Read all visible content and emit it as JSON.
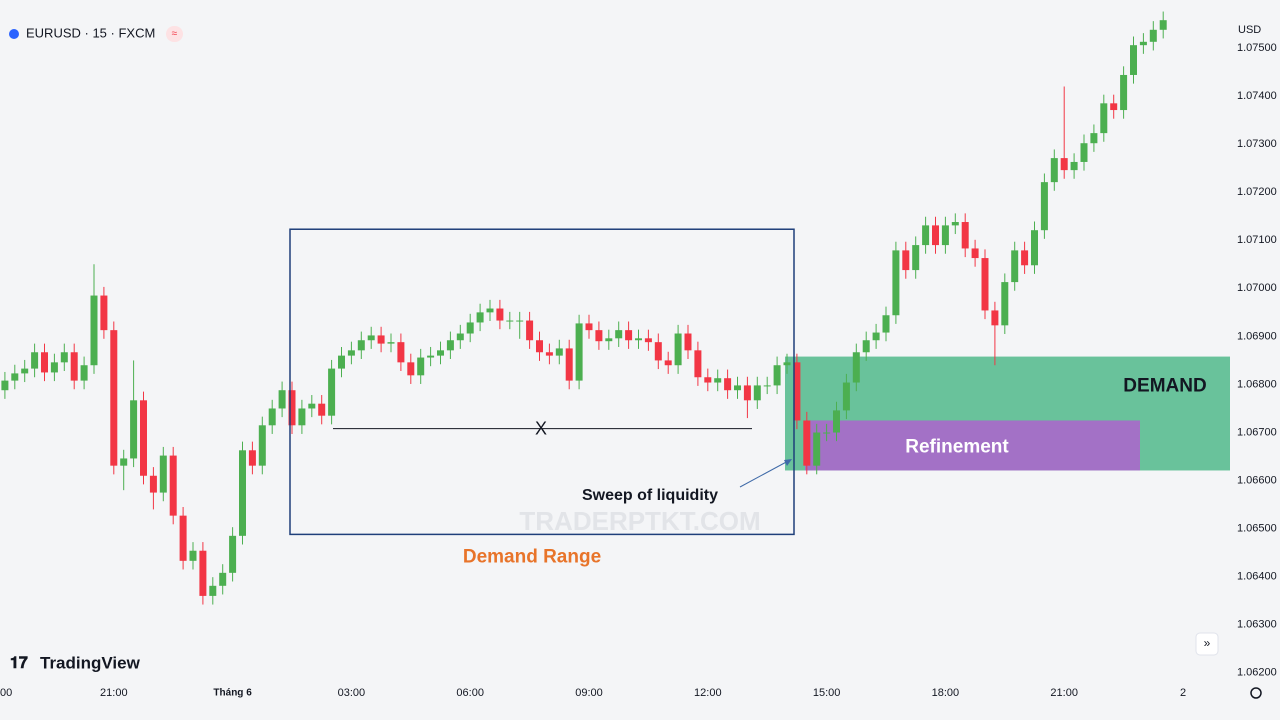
{
  "chart_data": {
    "type": "candlestick",
    "title": "EURUSD · 15 · FXCM",
    "currency": "USD",
    "brand": "TradingView",
    "watermark": "TRADERPTKT.COM",
    "up_color": "#4caf50",
    "down_color": "#f23645",
    "grid": false,
    "categories": [
      "00",
      null,
      null,
      null,
      null,
      null,
      null,
      null,
      null,
      null,
      null,
      null,
      "21:00",
      null,
      null,
      null,
      null,
      null,
      null,
      null,
      null,
      null,
      null,
      null,
      "Tháng 6",
      null,
      null,
      null,
      null,
      null,
      null,
      null,
      null,
      null,
      null,
      null,
      "03:00",
      null,
      null,
      null,
      null,
      null,
      null,
      null,
      null,
      null,
      null,
      null,
      "06:00",
      null,
      null,
      null,
      null,
      null,
      null,
      null,
      null,
      null,
      null,
      null,
      "09:00",
      null,
      null,
      null,
      null,
      null,
      null,
      null,
      null,
      null,
      null,
      null,
      "12:00",
      null,
      null,
      null,
      null,
      null,
      null,
      null,
      null,
      null,
      null,
      null,
      "15:00",
      null,
      null,
      null,
      null,
      null,
      null,
      null,
      null,
      null,
      null,
      null,
      "18:00",
      null,
      null,
      null,
      null,
      null,
      null,
      null,
      null,
      null,
      null,
      null,
      "21:00",
      null,
      null,
      null,
      null,
      null,
      null,
      null,
      null,
      null,
      null,
      null,
      "2"
    ],
    "open": [
      null,
      1.06788,
      1.06808,
      1.06823,
      1.06833,
      1.06867,
      1.06825,
      1.06846,
      1.06867,
      1.06808,
      1.0684,
      1.06985,
      1.06913,
      1.06631,
      1.06646,
      1.06767,
      1.0661,
      1.06575,
      1.06652,
      1.06527,
      1.06433,
      1.06454,
      1.0636,
      1.06381,
      1.06408,
      1.06485,
      1.06663,
      1.06631,
      1.06715,
      1.0675,
      1.06788,
      1.06715,
      1.0675,
      1.0676,
      1.06735,
      1.06833,
      1.0686,
      1.06871,
      1.06892,
      1.06902,
      1.06885,
      1.06888,
      1.06846,
      1.06819,
      1.06856,
      1.0686,
      1.06871,
      1.06892,
      1.06906,
      1.06929,
      1.0695,
      1.06958,
      1.06933,
      1.06933,
      1.06933,
      1.06892,
      1.06867,
      1.0686,
      1.06875,
      1.06808,
      1.06927,
      1.06913,
      1.0689,
      1.06896,
      1.06913,
      1.06892,
      1.06896,
      1.06888,
      1.0685,
      1.0684,
      1.06906,
      1.06871,
      1.06815,
      1.06804,
      1.06813,
      1.06788,
      1.06798,
      1.06767,
      1.06798,
      1.06798,
      1.0684,
      1.06846,
      1.06725,
      1.06631,
      1.067,
      1.067,
      1.06746,
      1.06804,
      1.06867,
      1.06892,
      1.06908,
      1.06944,
      1.07079,
      1.07038,
      1.0709,
      1.07131,
      1.0709,
      1.07131,
      1.07138,
      1.07083,
      1.07063,
      1.06954,
      1.06923,
      1.07013,
      1.07079,
      1.07048,
      1.07121,
      1.07221,
      1.07271,
      1.07246,
      1.07263,
      1.07302,
      1.07323,
      1.07385,
      1.07371,
      1.07444,
      1.07506,
      1.07513,
      1.07538,
      null,
      null
    ],
    "high": [
      null,
      1.06826,
      1.06841,
      1.06851,
      1.06885,
      1.06885,
      1.06864,
      1.06885,
      1.06885,
      1.06858,
      1.0705,
      1.07003,
      1.06931,
      1.06664,
      1.0685,
      1.06785,
      1.06628,
      1.0667,
      1.0667,
      1.06545,
      1.06472,
      1.06472,
      1.06399,
      1.06426,
      1.06503,
      1.06681,
      1.06681,
      1.06733,
      1.06768,
      1.06806,
      1.06806,
      1.06768,
      1.06778,
      1.06778,
      1.06851,
      1.06878,
      1.06889,
      1.0691,
      1.0692,
      1.0692,
      1.06906,
      1.06906,
      1.06864,
      1.06874,
      1.06878,
      1.06889,
      1.0691,
      1.06924,
      1.06947,
      1.06968,
      1.06976,
      1.06976,
      1.06951,
      1.06951,
      1.06951,
      1.0691,
      1.06885,
      1.06893,
      1.06893,
      1.06945,
      1.06945,
      1.06931,
      1.06914,
      1.06931,
      1.06931,
      1.06914,
      1.06914,
      1.06906,
      1.06868,
      1.06924,
      1.06924,
      1.06889,
      1.06833,
      1.06831,
      1.06831,
      1.06816,
      1.06816,
      1.06816,
      1.06816,
      1.06858,
      1.06864,
      1.06864,
      1.06743,
      1.06718,
      1.06718,
      1.06764,
      1.06822,
      1.06885,
      1.0691,
      1.06926,
      1.06962,
      1.07097,
      1.07097,
      1.07108,
      1.07149,
      1.07149,
      1.07149,
      1.07156,
      1.07156,
      1.07101,
      1.07081,
      1.06972,
      1.07031,
      1.07097,
      1.07097,
      1.07139,
      1.07239,
      1.07289,
      1.0742,
      1.07281,
      1.0732,
      1.07341,
      1.07403,
      1.07403,
      1.07462,
      1.07524,
      1.07531,
      1.07556,
      1.07576,
      null,
      null
    ],
    "low": [
      null,
      1.0677,
      1.0679,
      1.06805,
      1.06815,
      1.06807,
      1.06807,
      1.06828,
      1.0679,
      1.0679,
      1.06822,
      1.06895,
      1.06613,
      1.0658,
      1.06628,
      1.06592,
      1.0654,
      1.06557,
      1.06509,
      1.06415,
      1.06415,
      1.06342,
      1.06342,
      1.06363,
      1.0639,
      1.06467,
      1.06613,
      1.06613,
      1.06697,
      1.06732,
      1.06697,
      1.06697,
      1.06732,
      1.06717,
      1.06717,
      1.06815,
      1.06842,
      1.06853,
      1.06874,
      1.06867,
      1.06867,
      1.06828,
      1.06801,
      1.06801,
      1.06838,
      1.06842,
      1.06853,
      1.06874,
      1.06888,
      1.06911,
      1.06932,
      1.06915,
      1.06915,
      1.06895,
      1.06874,
      1.06849,
      1.06842,
      1.06842,
      1.0679,
      1.0679,
      1.06895,
      1.06872,
      1.06872,
      1.06878,
      1.06874,
      1.06874,
      1.0687,
      1.06832,
      1.06822,
      1.06822,
      1.06853,
      1.06797,
      1.06786,
      1.06786,
      1.0677,
      1.0677,
      1.0673,
      1.06749,
      1.0678,
      1.0678,
      1.06822,
      1.06707,
      1.06613,
      1.06613,
      1.06682,
      1.06682,
      1.06728,
      1.06786,
      1.06849,
      1.06874,
      1.0689,
      1.06926,
      1.0702,
      1.0702,
      1.07072,
      1.07072,
      1.07072,
      1.07113,
      1.07065,
      1.07045,
      1.06936,
      1.0684,
      1.06905,
      1.06995,
      1.0703,
      1.0703,
      1.07103,
      1.07203,
      1.07228,
      1.07228,
      1.07245,
      1.07284,
      1.07305,
      1.07353,
      1.07353,
      1.07426,
      1.07488,
      1.07495,
      1.0752,
      null,
      null
    ],
    "close": [
      null,
      1.06808,
      1.06823,
      1.06833,
      1.06867,
      1.06825,
      1.06846,
      1.06867,
      1.06808,
      1.0684,
      1.06985,
      1.06913,
      1.06631,
      1.06646,
      1.06767,
      1.0661,
      1.06575,
      1.06652,
      1.06527,
      1.06433,
      1.06454,
      1.0636,
      1.06381,
      1.06408,
      1.06485,
      1.06663,
      1.06631,
      1.06715,
      1.0675,
      1.06788,
      1.06715,
      1.0675,
      1.0676,
      1.06735,
      1.06833,
      1.0686,
      1.06871,
      1.06892,
      1.06902,
      1.06885,
      1.06888,
      1.06846,
      1.06819,
      1.06856,
      1.0686,
      1.06871,
      1.06892,
      1.06906,
      1.06929,
      1.0695,
      1.06958,
      1.06933,
      1.06933,
      1.06933,
      1.06892,
      1.06867,
      1.0686,
      1.06875,
      1.06808,
      1.06927,
      1.06913,
      1.0689,
      1.06896,
      1.06913,
      1.06892,
      1.06896,
      1.06888,
      1.0685,
      1.0684,
      1.06906,
      1.06871,
      1.06815,
      1.06804,
      1.06813,
      1.06788,
      1.06798,
      1.06767,
      1.06798,
      1.06798,
      1.0684,
      1.06846,
      1.06725,
      1.06631,
      1.067,
      1.067,
      1.06746,
      1.06804,
      1.06867,
      1.06892,
      1.06908,
      1.06944,
      1.07079,
      1.07038,
      1.0709,
      1.07131,
      1.0709,
      1.07131,
      1.07138,
      1.07083,
      1.07063,
      1.06954,
      1.06923,
      1.07013,
      1.07079,
      1.07048,
      1.07121,
      1.07221,
      1.07271,
      1.07246,
      1.07263,
      1.07302,
      1.07323,
      1.07385,
      1.07371,
      1.07444,
      1.07506,
      1.07513,
      1.07538,
      1.07558,
      null,
      null
    ],
    "ylim": [
      1.06185,
      1.076
    ],
    "yticks": [
      {
        "value": 1.075,
        "label": "1.07500"
      },
      {
        "value": 1.074,
        "label": "1.07400"
      },
      {
        "value": 1.073,
        "label": "1.07300"
      },
      {
        "value": 1.072,
        "label": "1.07200"
      },
      {
        "value": 1.071,
        "label": "1.07100"
      },
      {
        "value": 1.07,
        "label": "1.07000"
      },
      {
        "value": 1.069,
        "label": "1.06900"
      },
      {
        "value": 1.068,
        "label": "1.06800"
      },
      {
        "value": 1.067,
        "label": "1.06700"
      },
      {
        "value": 1.066,
        "label": "1.06600"
      },
      {
        "value": 1.065,
        "label": "1.06500"
      },
      {
        "value": 1.064,
        "label": "1.06400"
      },
      {
        "value": 1.063,
        "label": "1.06300"
      },
      {
        "value": 1.062,
        "label": "1.06200"
      }
    ],
    "demand_range": {
      "label": "Demand Range",
      "top": 1.07123,
      "bottom": 1.06488
    },
    "x_line": {
      "label": "X",
      "value": 1.06708
    },
    "sweep_label": "Sweep of liquidity",
    "demand_zone": {
      "label": "DEMAND",
      "top": 1.06858,
      "bottom": 1.06621
    },
    "refinement_zone": {
      "label": "Refinement",
      "top": 1.06725,
      "bottom": 1.06621
    }
  }
}
